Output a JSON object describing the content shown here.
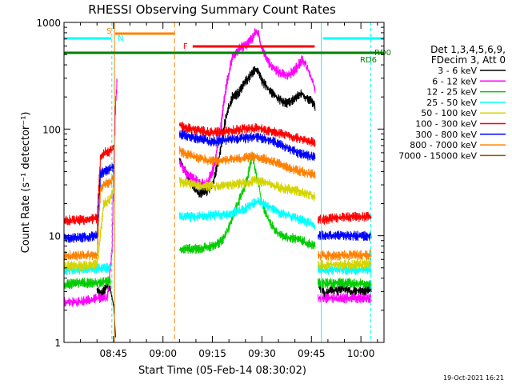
{
  "chart_data": {
    "type": "line",
    "title": "RHESSI Observing Summary Count Rates",
    "xlabel": "Start Time (05-Feb-14 08:30:02)",
    "ylabel": "Count Rate (s⁻¹ detector⁻¹)",
    "x_unit": "minutes since 08:30:02",
    "xlim": [
      0,
      97
    ],
    "ylim": [
      1,
      1000
    ],
    "yscale": "log",
    "x_ticks": [
      {
        "x": 15,
        "label": "08:45"
      },
      {
        "x": 30,
        "label": "09:00"
      },
      {
        "x": 45,
        "label": "09:15"
      },
      {
        "x": 60,
        "label": "09:30"
      },
      {
        "x": 75,
        "label": "09:45"
      },
      {
        "x": 90,
        "label": "10:00"
      }
    ],
    "y_ticks": [
      {
        "y": 1,
        "label": "1"
      },
      {
        "y": 10,
        "label": "10"
      },
      {
        "y": 100,
        "label": "100"
      },
      {
        "y": 1000,
        "label": "1000"
      }
    ],
    "legend": {
      "header1": "Det 1,3,4,5,6,9,",
      "header2": "FDecim 3, Att 0",
      "placement": "right"
    },
    "series": [
      {
        "name": "3 - 6 keV",
        "color": "#000000",
        "segments": [
          [
            [
              10,
              3.2
            ],
            [
              11,
              2.8
            ],
            [
              12,
              3.0
            ],
            [
              13,
              3.4
            ],
            [
              14,
              3.1
            ],
            [
              15,
              2.2
            ],
            [
              15.5,
              1.2
            ]
          ],
          [
            [
              35,
              50
            ],
            [
              37,
              38
            ],
            [
              39,
              30
            ],
            [
              41,
              25
            ],
            [
              43,
              26
            ],
            [
              45,
              30
            ],
            [
              47,
              55
            ],
            [
              49,
              130
            ],
            [
              51,
              200
            ],
            [
              53,
              220
            ],
            [
              55,
              280
            ],
            [
              57,
              330
            ],
            [
              58,
              370
            ],
            [
              59,
              330
            ],
            [
              60,
              280
            ],
            [
              62,
              235
            ],
            [
              64,
              205
            ],
            [
              66,
              180
            ],
            [
              68,
              175
            ],
            [
              70,
              195
            ],
            [
              72,
              215
            ],
            [
              73,
              200
            ],
            [
              75,
              180
            ],
            [
              76,
              165
            ]
          ],
          [
            [
              77,
              3.5
            ],
            [
              79,
              2.8
            ],
            [
              81,
              3.2
            ],
            [
              83,
              3.0
            ],
            [
              85,
              3.3
            ],
            [
              87,
              2.9
            ],
            [
              89,
              3.1
            ],
            [
              91,
              3.0
            ],
            [
              93,
              3.2
            ]
          ]
        ]
      },
      {
        "name": "6 - 12 keV",
        "color": "#ff00ff",
        "segments": [
          [
            [
              0,
              2.4
            ],
            [
              5,
              2.4
            ],
            [
              10,
              2.6
            ],
            [
              13,
              2.6
            ],
            [
              14.5,
              7
            ],
            [
              15,
              40
            ],
            [
              15.5,
              150
            ],
            [
              16,
              280
            ]
          ],
          [
            [
              35,
              48
            ],
            [
              37,
              38
            ],
            [
              39,
              35
            ],
            [
              41,
              32
            ],
            [
              43,
              30
            ],
            [
              45,
              40
            ],
            [
              47,
              80
            ],
            [
              49,
              240
            ],
            [
              51,
              480
            ],
            [
              53,
              560
            ],
            [
              55,
              620
            ],
            [
              57,
              700
            ],
            [
              58,
              820
            ],
            [
              59,
              760
            ],
            [
              60,
              560
            ],
            [
              62,
              420
            ],
            [
              64,
              360
            ],
            [
              66,
              330
            ],
            [
              68,
              320
            ],
            [
              70,
              360
            ],
            [
              72,
              440
            ],
            [
              73,
              420
            ],
            [
              75,
              300
            ],
            [
              76,
              240
            ]
          ],
          [
            [
              77,
              2.6
            ],
            [
              85,
              2.6
            ],
            [
              93,
              2.6
            ]
          ]
        ]
      },
      {
        "name": "12 - 25 keV",
        "color": "#00cc00",
        "segments": [
          [
            [
              0,
              3.5
            ],
            [
              5,
              3.6
            ],
            [
              10,
              3.6
            ],
            [
              14,
              3.8
            ]
          ],
          [
            [
              35,
              7.5
            ],
            [
              40,
              7.5
            ],
            [
              45,
              8
            ],
            [
              48,
              9
            ],
            [
              50,
              12
            ],
            [
              52,
              18
            ],
            [
              54,
              25
            ],
            [
              55,
              30
            ],
            [
              56,
              40
            ],
            [
              57,
              58
            ],
            [
              58,
              40
            ],
            [
              59,
              30
            ],
            [
              60,
              20
            ],
            [
              62,
              14
            ],
            [
              64,
              11
            ],
            [
              66,
              10
            ],
            [
              68,
              9.5
            ],
            [
              70,
              9.5
            ],
            [
              72,
              9
            ],
            [
              74,
              8.5
            ],
            [
              76,
              8
            ]
          ],
          [
            [
              77,
              3.6
            ],
            [
              85,
              3.6
            ],
            [
              93,
              3.5
            ]
          ]
        ]
      },
      {
        "name": "25 - 50 keV",
        "color": "#00ffff",
        "segments": [
          [
            [
              0,
              4.8
            ],
            [
              5,
              4.8
            ],
            [
              10,
              4.9
            ],
            [
              14,
              5.0
            ]
          ],
          [
            [
              35,
              15
            ],
            [
              40,
              15
            ],
            [
              45,
              15.5
            ],
            [
              50,
              16
            ],
            [
              55,
              18
            ],
            [
              57,
              20
            ],
            [
              59,
              21
            ],
            [
              60,
              20
            ],
            [
              63,
              18
            ],
            [
              66,
              16
            ],
            [
              69,
              15
            ],
            [
              72,
              14
            ],
            [
              76,
              12.5
            ]
          ],
          [
            [
              77,
              4.8
            ],
            [
              85,
              4.8
            ],
            [
              93,
              4.8
            ]
          ]
        ]
      },
      {
        "name": "50 - 100 keV",
        "color": "#d4d400",
        "segments": [
          [
            [
              0,
              5.2
            ],
            [
              5,
              5.2
            ],
            [
              10,
              5.4
            ],
            [
              12,
              20
            ],
            [
              14,
              22
            ],
            [
              15,
              28
            ]
          ],
          [
            [
              35,
              32
            ],
            [
              40,
              30
            ],
            [
              45,
              29
            ],
            [
              50,
              30
            ],
            [
              55,
              31
            ],
            [
              58,
              33
            ],
            [
              60,
              32
            ],
            [
              63,
              30
            ],
            [
              66,
              28
            ],
            [
              69,
              27
            ],
            [
              72,
              26
            ],
            [
              76,
              23
            ]
          ],
          [
            [
              77,
              5.3
            ],
            [
              85,
              5.4
            ],
            [
              93,
              5.4
            ]
          ]
        ]
      },
      {
        "name": "100 - 300 keV",
        "color": "#ff0000",
        "segments": [
          [
            [
              0,
              14
            ],
            [
              5,
              14
            ],
            [
              10,
              14.5
            ],
            [
              11,
              55
            ],
            [
              12,
              60
            ],
            [
              14,
              62
            ],
            [
              15,
              70
            ]
          ],
          [
            [
              35,
              108
            ],
            [
              40,
              98
            ],
            [
              45,
              92
            ],
            [
              50,
              96
            ],
            [
              55,
              100
            ],
            [
              58,
              102
            ],
            [
              60,
              100
            ],
            [
              63,
              95
            ],
            [
              66,
              90
            ],
            [
              69,
              85
            ],
            [
              72,
              80
            ],
            [
              76,
              75
            ]
          ],
          [
            [
              77,
              14
            ],
            [
              85,
              15
            ],
            [
              93,
              15
            ]
          ]
        ]
      },
      {
        "name": "300 - 800 keV",
        "color": "#0000ff",
        "segments": [
          [
            [
              0,
              9.5
            ],
            [
              5,
              9.6
            ],
            [
              10,
              10
            ],
            [
              11,
              38
            ],
            [
              12,
              40
            ],
            [
              14,
              42
            ],
            [
              15,
              45
            ]
          ],
          [
            [
              35,
              90
            ],
            [
              40,
              82
            ],
            [
              45,
              76
            ],
            [
              50,
              80
            ],
            [
              55,
              82
            ],
            [
              58,
              84
            ],
            [
              60,
              82
            ],
            [
              63,
              78
            ],
            [
              66,
              70
            ],
            [
              69,
              64
            ],
            [
              72,
              58
            ],
            [
              76,
              55
            ]
          ],
          [
            [
              77,
              10
            ],
            [
              85,
              10
            ],
            [
              93,
              10
            ]
          ]
        ]
      },
      {
        "name": "800 - 7000 keV",
        "color": "#ff8000",
        "segments": [
          [
            [
              0,
              6.5
            ],
            [
              5,
              6.5
            ],
            [
              10,
              6.6
            ],
            [
              11,
              28
            ],
            [
              12,
              30
            ],
            [
              14,
              32
            ],
            [
              15,
              34
            ]
          ],
          [
            [
              35,
              62
            ],
            [
              40,
              54
            ],
            [
              45,
              50
            ],
            [
              50,
              52
            ],
            [
              55,
              54
            ],
            [
              58,
              55
            ],
            [
              60,
              53
            ],
            [
              63,
              50
            ],
            [
              66,
              46
            ],
            [
              69,
              42
            ],
            [
              72,
              40
            ],
            [
              76,
              37
            ]
          ],
          [
            [
              77,
              6.5
            ],
            [
              85,
              6.6
            ],
            [
              93,
              6.6
            ]
          ]
        ]
      },
      {
        "name": "7000 - 15000 keV",
        "color": "#8b5a00",
        "segments": []
      }
    ],
    "annotations": {
      "saa_label": "S",
      "night_label": "N",
      "flare_label": "F",
      "rd0_label": "RD0",
      "rd6_label": "RD6"
    },
    "colors": {
      "saa": "#ff8000",
      "night": "#00ffff",
      "flare": "#ff0000",
      "decimation": "#008000"
    }
  },
  "footer": {
    "generated_date": "19-Oct-2021 16:21"
  }
}
